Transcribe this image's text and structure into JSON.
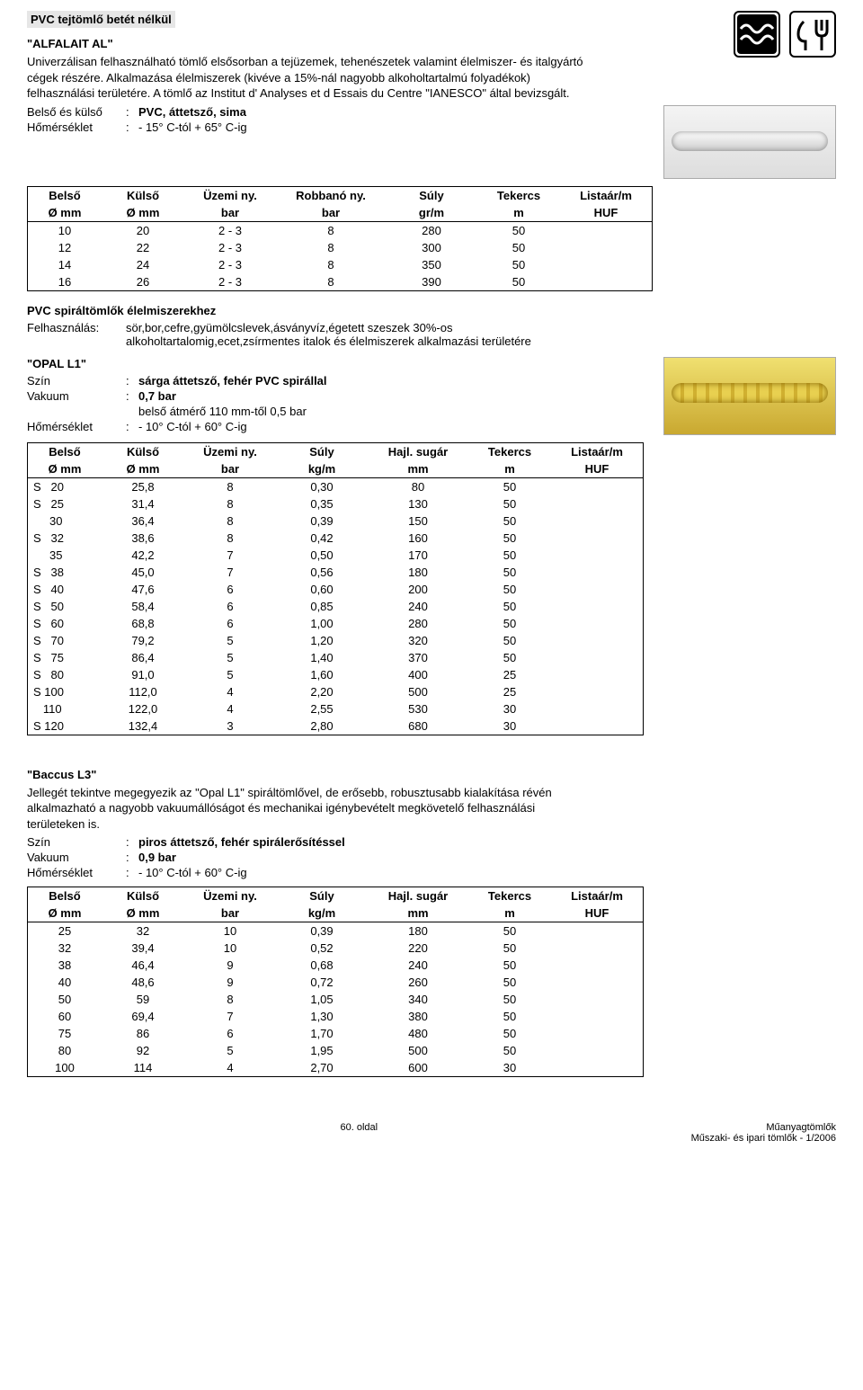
{
  "section1": {
    "title_hl": "PVC tejtömlő betét nélkül",
    "name": "\"ALFALAIT AL\"",
    "desc1": "Univerzálisan felhasználható tömlő elsősorban a tejüzemek, tehenészetek valamint élelmiszer- és italgyártó cégek részére. Alkalmazása élelmiszerek (kivéve a 15%-nál nagyobb alkoholtartalmú folyadékok) felhasználási területére. A tömlő az Institut d' Analyses et d Essais du Centre \"IANESCO\" által bevizsgált.",
    "specs": [
      {
        "k": "Belső és külső",
        "v": "PVC, áttetsző, sima",
        "bold": true,
        "note": ""
      },
      {
        "k": "Hőmérséklet",
        "v": "- 15° C-tól + 65° C-ig",
        "bold": false
      }
    ],
    "table": {
      "head1": [
        "Belső",
        "Külső",
        "Üzemi ny.",
        "Robbanó ny.",
        "Súly",
        "Tekercs",
        "Listaár/m"
      ],
      "head2": [
        "Ø mm",
        "Ø mm",
        "bar",
        "bar",
        "gr/m",
        "m",
        "HUF"
      ],
      "rows": [
        [
          "10",
          "20",
          "2 - 3",
          "8",
          "280",
          "50",
          ""
        ],
        [
          "12",
          "22",
          "2 - 3",
          "8",
          "300",
          "50",
          ""
        ],
        [
          "14",
          "24",
          "2 - 3",
          "8",
          "350",
          "50",
          ""
        ],
        [
          "16",
          "26",
          "2 - 3",
          "8",
          "390",
          "50",
          ""
        ]
      ],
      "widths": [
        70,
        80,
        90,
        110,
        90,
        80,
        90
      ]
    }
  },
  "section2": {
    "title": "PVC spiráltömlők élelmiszerekhez",
    "usage_k": "Felhasználás:",
    "usage_v": "sör,bor,cefre,gyümölcslevek,ásványvíz,égetett szeszek 30%-os alkoholtartalomig,ecet,zsírmentes italok és élelmiszerek alkalmazási területére",
    "name": "\"OPAL L1\"",
    "specs": [
      {
        "k": "Szín",
        "v": "sárga áttetsző, fehér PVC spirállal",
        "bold": true
      },
      {
        "k": "Vakuum",
        "v": "0,7 bar",
        "bold": true
      },
      {
        "k": "",
        "v": "belső átmérő 110 mm-től 0,5 bar",
        "bold": false
      },
      {
        "k": "Hőmérséklet",
        "v": "- 10° C-tól + 60° C-ig",
        "bold": false
      }
    ],
    "table": {
      "head1": [
        "Belső",
        "Külső",
        "Üzemi ny.",
        "Súly",
        "Hajl. sugár",
        "Tekercs",
        "Listaár/m"
      ],
      "head2": [
        "Ø mm",
        "Ø mm",
        "bar",
        "kg/m",
        "mm",
        "m",
        "HUF"
      ],
      "rows": [
        [
          "S   20",
          "25,8",
          "8",
          "0,30",
          "80",
          "50",
          ""
        ],
        [
          "S   25",
          "31,4",
          "8",
          "0,35",
          "130",
          "50",
          ""
        ],
        [
          "     30",
          "36,4",
          "8",
          "0,39",
          "150",
          "50",
          ""
        ],
        [
          "S   32",
          "38,6",
          "8",
          "0,42",
          "160",
          "50",
          ""
        ],
        [
          "     35",
          "42,2",
          "7",
          "0,50",
          "170",
          "50",
          ""
        ],
        [
          "S   38",
          "45,0",
          "7",
          "0,56",
          "180",
          "50",
          ""
        ],
        [
          "S   40",
          "47,6",
          "6",
          "0,60",
          "200",
          "50",
          ""
        ],
        [
          "S   50",
          "58,4",
          "6",
          "0,85",
          "240",
          "50",
          ""
        ],
        [
          "S   60",
          "68,8",
          "6",
          "1,00",
          "280",
          "50",
          ""
        ],
        [
          "S   70",
          "79,2",
          "5",
          "1,20",
          "320",
          "50",
          ""
        ],
        [
          "S   75",
          "86,4",
          "5",
          "1,40",
          "370",
          "50",
          ""
        ],
        [
          "S   80",
          "91,0",
          "5",
          "1,60",
          "400",
          "25",
          ""
        ],
        [
          "S 100",
          "112,0",
          "4",
          "2,20",
          "500",
          "25",
          ""
        ],
        [
          "   110",
          "122,0",
          "4",
          "2,55",
          "530",
          "30",
          ""
        ],
        [
          "S 120",
          "132,4",
          "3",
          "2,80",
          "680",
          "30",
          ""
        ]
      ],
      "widths": [
        70,
        80,
        90,
        90,
        100,
        80,
        90
      ]
    }
  },
  "section3": {
    "name": "\"Baccus L3\"",
    "desc": "Jellegét tekintve megegyezik az \"Opal L1\" spiráltömlővel, de erősebb, robusztusabb kialakítása révén alkalmazható a nagyobb vakuumállóságot és mechanikai igénybevételt megkövetelő felhasználási területeken is.",
    "specs": [
      {
        "k": "Szín",
        "v": "piros áttetsző, fehér spirálerősítéssel",
        "bold": true
      },
      {
        "k": "Vakuum",
        "v": "0,9 bar",
        "bold": true
      },
      {
        "k": "Hőmérséklet",
        "v": "- 10° C-tól + 60° C-ig",
        "bold": false
      }
    ],
    "table": {
      "head1": [
        "Belső",
        "Külső",
        "Üzemi ny.",
        "Súly",
        "Hajl. sugár",
        "Tekercs",
        "Listaár/m"
      ],
      "head2": [
        "Ø mm",
        "Ø mm",
        "bar",
        "kg/m",
        "mm",
        "m",
        "HUF"
      ],
      "rows": [
        [
          "25",
          "32",
          "10",
          "0,39",
          "180",
          "50",
          ""
        ],
        [
          "32",
          "39,4",
          "10",
          "0,52",
          "220",
          "50",
          ""
        ],
        [
          "38",
          "46,4",
          "9",
          "0,68",
          "240",
          "50",
          ""
        ],
        [
          "40",
          "48,6",
          "9",
          "0,72",
          "260",
          "50",
          ""
        ],
        [
          "50",
          "59",
          "8",
          "1,05",
          "340",
          "50",
          ""
        ],
        [
          "60",
          "69,4",
          "7",
          "1,30",
          "380",
          "50",
          ""
        ],
        [
          "75",
          "86",
          "6",
          "1,70",
          "480",
          "50",
          ""
        ],
        [
          "80",
          "92",
          "5",
          "1,95",
          "500",
          "50",
          ""
        ],
        [
          "100",
          "114",
          "4",
          "2,70",
          "600",
          "30",
          ""
        ]
      ],
      "widths": [
        70,
        80,
        90,
        90,
        100,
        80,
        90
      ]
    }
  },
  "footer": {
    "left": "",
    "center": "60. oldal",
    "right1": "Műanyagtömlők",
    "right2": "Műszaki- és ipari tömlők - 1/2006"
  }
}
